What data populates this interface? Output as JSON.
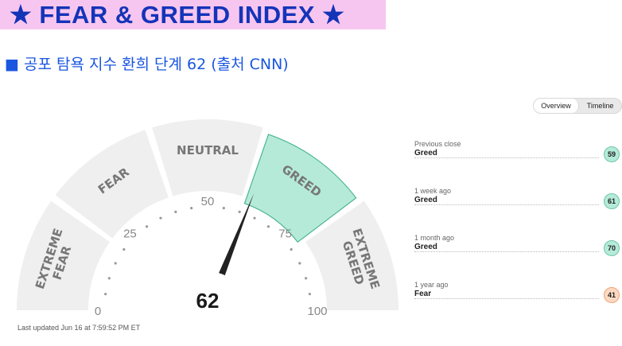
{
  "banner": {
    "title": "★ FEAR & GREED INDEX ★"
  },
  "subtitle": "■ 공포 탐욕 지수 환희 단계 62 (출처 CNN)",
  "toggle": {
    "overview": "Overview",
    "timeline": "Timeline",
    "active": "Overview"
  },
  "gauge": {
    "value": 62,
    "value_label": "62",
    "segments": [
      {
        "lines": [
          "EXTREME",
          "FEAR"
        ]
      },
      {
        "lines": [
          "FEAR"
        ]
      },
      {
        "lines": [
          "NEUTRAL"
        ]
      },
      {
        "lines": [
          "GREED"
        ]
      },
      {
        "lines": [
          "EXTREME",
          "GREED"
        ]
      }
    ],
    "scale_labels": [
      "0",
      "25",
      "50",
      "75",
      "100"
    ],
    "active_segment": "GREED",
    "active_color": "#b5ead9"
  },
  "last_updated": "Last updated Jun 16 at 7:59:52 PM ET",
  "history": [
    {
      "period": "Previous close",
      "label": "Greed",
      "value": "59",
      "tone": "greed"
    },
    {
      "period": "1 week ago",
      "label": "Greed",
      "value": "61",
      "tone": "greed"
    },
    {
      "period": "1 month ago",
      "label": "Greed",
      "value": "70",
      "tone": "greed"
    },
    {
      "period": "1 year ago",
      "label": "Fear",
      "value": "41",
      "tone": "fear"
    }
  ]
}
